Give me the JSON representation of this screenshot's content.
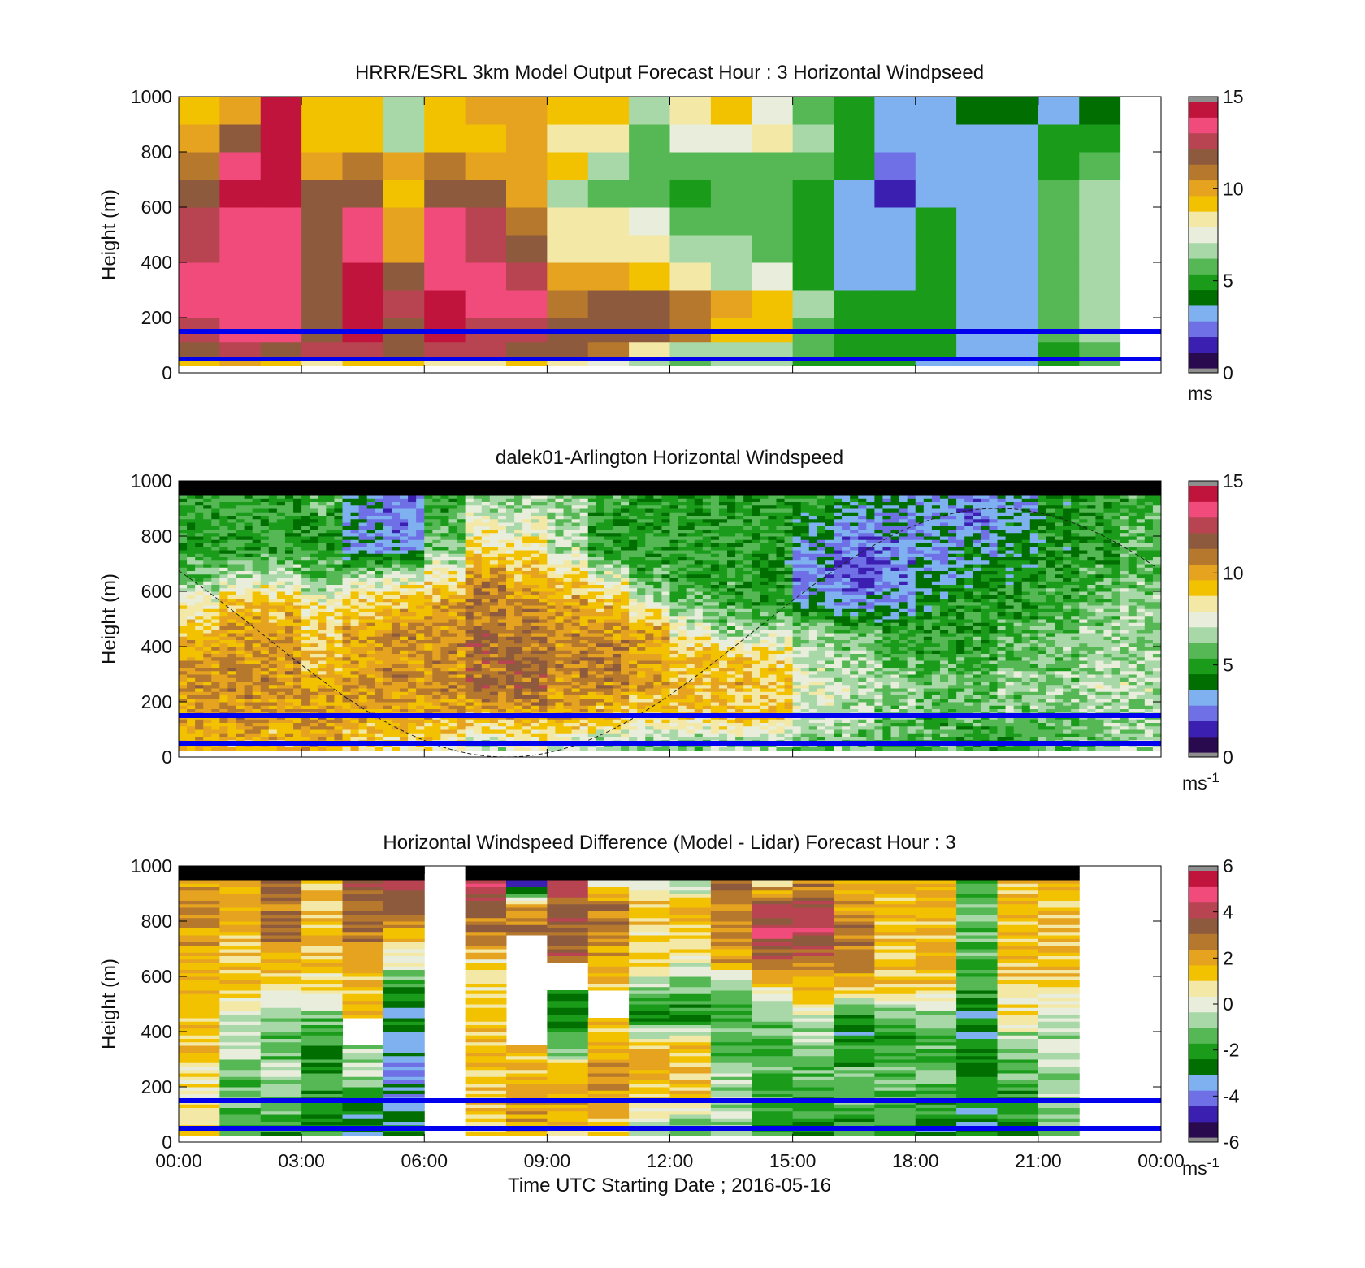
{
  "colors": {
    "marker_lines": "#0000ee",
    "colormap": [
      "#2a0a4e",
      "#3b1fb0",
      "#6f6fe6",
      "#7fb0f0",
      "#006e00",
      "#1a9b1a",
      "#55b855",
      "#a8d8a8",
      "#e9eedc",
      "#f3e8a6",
      "#f2c200",
      "#e6a31f",
      "#b5782c",
      "#8e5a3e",
      "#b84452",
      "#f04b7a",
      "#c0143c",
      "#8e8e8e"
    ]
  },
  "chart_data": [
    {
      "type": "heatmap",
      "title": "HRRR/ESRL 3km Model Output   Forecast Hour : 3 Horizontal Windpseed",
      "ylabel": "Height (m)",
      "xlabel": "",
      "ylim": [
        0,
        1000
      ],
      "yticks": [
        "0",
        "200",
        "400",
        "600",
        "800",
        "1000"
      ],
      "xticks": [
        "",
        "",
        "",
        "",
        "",
        "",
        "",
        "",
        ""
      ],
      "xlim_hours": [
        0,
        24
      ],
      "colorbar": {
        "min": 0,
        "max": 15,
        "ticks": [
          "0",
          "5",
          "10",
          "15"
        ],
        "unit": "ms"
      },
      "marker_heights": [
        150,
        50
      ],
      "profile_hours": [
        0,
        1,
        2,
        3,
        4,
        5,
        6,
        7,
        8,
        9,
        10,
        11,
        12,
        13,
        14,
        15,
        16,
        17,
        18,
        19,
        20,
        21,
        22
      ],
      "profile_levels": [
        25,
        75,
        150,
        250,
        350,
        450,
        550,
        650,
        750,
        850,
        950
      ],
      "values": [
        [
          9.5,
          10.5,
          9.5,
          8.5,
          9.5,
          9.0,
          8.0,
          8.5,
          9.0,
          8.5,
          7.5,
          6.5,
          6.0,
          6.5,
          6.5,
          5.0,
          5.0,
          5.0,
          3.5,
          3.5,
          3.0,
          5.0,
          5.5
        ],
        [
          11.5,
          12.5,
          11.5,
          12.5,
          13.0,
          12.0,
          13.0,
          12.5,
          12.0,
          11.5,
          11.0,
          8.5,
          6.5,
          6.5,
          7.0,
          5.5,
          5.0,
          5.0,
          4.5,
          3.5,
          3.5,
          5.0,
          5.5
        ],
        [
          13.0,
          14.0,
          13.5,
          11.5,
          14.5,
          12.0,
          14.5,
          13.0,
          12.5,
          11.5,
          11.5,
          11.5,
          11.0,
          9.5,
          9.0,
          6.0,
          5.0,
          5.0,
          5.0,
          3.5,
          3.5,
          5.5,
          6.5
        ],
        [
          13.5,
          14.0,
          14.0,
          11.5,
          14.5,
          13.0,
          14.5,
          14.0,
          13.5,
          11.0,
          11.5,
          11.5,
          11.0,
          10.0,
          9.0,
          6.5,
          5.0,
          5.0,
          5.0,
          3.5,
          3.5,
          5.5,
          6.5
        ],
        [
          13.5,
          14.0,
          13.5,
          11.5,
          14.5,
          12.0,
          14.0,
          13.5,
          12.5,
          10.0,
          10.0,
          9.5,
          8.0,
          6.5,
          7.5,
          5.0,
          3.5,
          3.5,
          5.0,
          3.5,
          3.5,
          5.5,
          6.5
        ],
        [
          13.0,
          14.0,
          13.5,
          11.5,
          14.0,
          10.5,
          14.0,
          13.0,
          11.5,
          8.0,
          8.0,
          8.5,
          6.5,
          6.5,
          6.0,
          5.0,
          3.5,
          3.0,
          5.0,
          3.5,
          3.5,
          5.5,
          6.5
        ],
        [
          12.5,
          14.0,
          14.0,
          11.5,
          14.0,
          10.0,
          14.0,
          12.5,
          11.0,
          8.0,
          8.0,
          7.5,
          6.0,
          5.5,
          5.5,
          5.0,
          3.5,
          3.0,
          5.0,
          3.5,
          3.5,
          5.5,
          6.5
        ],
        [
          12.0,
          14.5,
          14.5,
          11.5,
          11.5,
          9.5,
          12.0,
          11.5,
          10.0,
          7.0,
          6.0,
          6.0,
          5.0,
          5.5,
          5.5,
          4.5,
          3.5,
          1.5,
          3.5,
          3.5,
          3.5,
          5.5,
          6.5
        ],
        [
          11.0,
          13.5,
          14.5,
          10.5,
          11.0,
          10.5,
          11.0,
          10.5,
          10.0,
          9.0,
          7.0,
          6.0,
          5.5,
          5.5,
          6.0,
          5.5,
          4.5,
          2.0,
          3.5,
          3.5,
          3.5,
          5.0,
          5.5
        ],
        [
          10.5,
          11.5,
          14.5,
          9.5,
          9.5,
          6.5,
          9.5,
          9.5,
          10.0,
          8.5,
          8.0,
          6.0,
          7.5,
          7.5,
          8.0,
          6.5,
          5.0,
          3.5,
          3.0,
          3.5,
          3.5,
          4.5,
          5.0
        ],
        [
          9.0,
          10.0,
          14.5,
          9.0,
          9.0,
          7.0,
          9.0,
          10.0,
          10.5,
          9.5,
          9.0,
          7.0,
          8.5,
          9.0,
          7.5,
          6.0,
          4.5,
          3.0,
          3.5,
          4.0,
          4.0,
          3.5,
          4.0
        ]
      ]
    },
    {
      "type": "heatmap",
      "title": "dalek01-Arlington  Horizontal Windspeed",
      "ylabel": "Height (m)",
      "xlabel": "",
      "ylim": [
        0,
        1000
      ],
      "yticks": [
        "0",
        "200",
        "400",
        "600",
        "800",
        "1000"
      ],
      "xticks": [
        "",
        "",
        "",
        "",
        "",
        "",
        "",
        "",
        ""
      ],
      "xlim_hours": [
        0,
        24
      ],
      "colorbar": {
        "min": 0,
        "max": 15,
        "ticks": [
          "0",
          "5",
          "10",
          "15"
        ],
        "unit": "ms",
        "unit_exp": "-1"
      },
      "marker_heights": [
        150,
        50
      ],
      "profile_hours": [
        0,
        1,
        2,
        3,
        4,
        5,
        6,
        7,
        8,
        9,
        10,
        11,
        12,
        13,
        14,
        15,
        16,
        17,
        18,
        19,
        20,
        21,
        22,
        23
      ],
      "profile_levels": [
        50,
        150,
        250,
        350,
        450,
        550,
        650,
        750,
        850,
        950
      ],
      "values": [
        [
          9.5,
          9.5,
          9.5,
          10.0,
          9.0,
          8.5,
          8.5,
          7.0,
          8.0,
          7.0,
          6.5,
          6.0,
          6.0,
          6.5,
          6.5,
          6.0,
          6.0,
          5.5,
          5.5,
          5.0,
          5.0,
          5.5,
          6.0,
          6.5
        ],
        [
          10.0,
          10.5,
          10.0,
          10.5,
          10.0,
          10.0,
          10.0,
          9.5,
          10.0,
          10.0,
          9.5,
          9.0,
          9.0,
          9.5,
          9.5,
          7.0,
          6.5,
          6.0,
          5.5,
          5.5,
          6.0,
          6.0,
          6.5,
          6.5
        ],
        [
          10.5,
          10.5,
          10.5,
          10.0,
          10.5,
          10.5,
          10.5,
          11.5,
          11.5,
          10.5,
          10.5,
          10.0,
          9.5,
          9.5,
          9.0,
          7.5,
          7.0,
          6.5,
          6.0,
          6.0,
          6.5,
          6.5,
          7.0,
          7.0
        ],
        [
          10.0,
          10.5,
          10.5,
          9.5,
          10.0,
          10.5,
          10.5,
          11.5,
          11.5,
          11.0,
          11.0,
          10.0,
          9.5,
          9.5,
          9.0,
          7.0,
          6.5,
          6.0,
          5.5,
          5.5,
          6.0,
          6.0,
          6.5,
          6.5
        ],
        [
          9.5,
          10.0,
          10.0,
          9.0,
          10.0,
          10.5,
          10.5,
          11.5,
          11.0,
          10.5,
          10.5,
          10.0,
          8.0,
          6.5,
          7.0,
          6.5,
          6.0,
          5.5,
          5.0,
          5.0,
          5.5,
          6.0,
          6.5,
          6.5
        ],
        [
          8.0,
          9.5,
          9.5,
          8.0,
          9.0,
          9.5,
          10.0,
          11.0,
          10.5,
          10.0,
          9.5,
          7.5,
          6.0,
          5.5,
          5.0,
          4.0,
          3.0,
          3.0,
          4.5,
          5.0,
          5.0,
          5.5,
          6.0,
          6.5
        ],
        [
          6.0,
          7.0,
          7.0,
          6.0,
          7.0,
          7.5,
          8.5,
          10.5,
          9.5,
          9.0,
          7.5,
          5.5,
          5.0,
          5.0,
          4.5,
          2.5,
          2.0,
          2.5,
          3.5,
          4.0,
          4.5,
          5.0,
          5.5,
          6.0
        ],
        [
          5.0,
          5.0,
          5.0,
          5.0,
          3.0,
          3.0,
          6.0,
          8.5,
          8.5,
          7.0,
          5.0,
          5.0,
          5.0,
          5.0,
          4.5,
          3.0,
          2.0,
          2.5,
          3.0,
          3.5,
          4.0,
          4.5,
          5.0,
          5.5
        ],
        [
          5.0,
          5.0,
          5.0,
          5.0,
          3.0,
          2.5,
          5.5,
          7.5,
          7.5,
          6.5,
          5.0,
          5.0,
          5.0,
          5.0,
          5.0,
          4.0,
          3.0,
          3.0,
          3.0,
          2.5,
          3.5,
          4.5,
          5.0,
          5.5
        ],
        [
          5.0,
          5.0,
          5.0,
          5.5,
          3.5,
          2.5,
          5.0,
          6.5,
          6.5,
          6.5,
          5.5,
          5.0,
          5.0,
          5.0,
          5.0,
          5.0,
          4.0,
          3.5,
          3.0,
          2.5,
          3.0,
          4.5,
          5.0,
          5.5
        ]
      ]
    },
    {
      "type": "heatmap",
      "title": "Horizontal Windspeed Difference (Model - Lidar) Forecast Hour : 3",
      "ylabel": "Height (m)",
      "xlabel": "Time UTC  Starting Date ; 2016-05-16",
      "ylim": [
        0,
        1000
      ],
      "yticks": [
        "0",
        "200",
        "400",
        "600",
        "800",
        "1000"
      ],
      "xticks": [
        "00:00",
        "03:00",
        "06:00",
        "09:00",
        "12:00",
        "15:00",
        "18:00",
        "21:00",
        "00:00"
      ],
      "xlim_hours": [
        0,
        24
      ],
      "colorbar": {
        "min": -6,
        "max": 6,
        "ticks": [
          "-6",
          "-4",
          "-2",
          "0",
          "2",
          "4",
          "6"
        ],
        "unit": "ms",
        "unit_exp": "-1"
      },
      "marker_heights": [
        150,
        50
      ],
      "profile_hours": [
        0,
        1,
        2,
        3,
        4,
        5,
        6,
        7,
        8,
        9,
        10,
        11,
        12,
        13,
        14,
        15,
        16,
        17,
        18,
        19,
        20,
        21,
        22
      ],
      "profile_levels": [
        50,
        150,
        250,
        350,
        450,
        550,
        650,
        750,
        850,
        950
      ],
      "values": [
        [
          1.0,
          -2.0,
          -2.0,
          -2.5,
          -3.0,
          -2.5,
          null,
          1.0,
          2.0,
          1.5,
          1.0,
          -1.0,
          -2.0,
          -1.0,
          -2.0,
          -2.5,
          -2.0,
          -2.0,
          -2.5,
          -3.0,
          -2.5,
          -1.5,
          null
        ],
        [
          0.5,
          -1.5,
          -1.5,
          -2.0,
          -2.5,
          -3.5,
          null,
          1.5,
          2.5,
          2.0,
          2.0,
          1.5,
          1.5,
          -0.5,
          -1.5,
          -2.0,
          -1.5,
          -1.5,
          -2.0,
          -2.5,
          -2.0,
          -1.0,
          null
        ],
        [
          1.0,
          -1.0,
          -0.5,
          -2.0,
          -0.5,
          -4.0,
          null,
          1.5,
          1.5,
          2.0,
          2.5,
          2.0,
          1.5,
          -1.0,
          -1.5,
          -1.5,
          -1.5,
          -1.5,
          -1.5,
          -2.5,
          -1.5,
          -0.5,
          null
        ],
        [
          1.5,
          -0.5,
          -1.5,
          -2.0,
          null,
          -3.5,
          null,
          1.5,
          null,
          -1.5,
          1.5,
          1.5,
          1.5,
          -1.5,
          -1.5,
          -1.0,
          -2.5,
          -2.0,
          -1.5,
          -2.5,
          -1.0,
          -0.5,
          null
        ],
        [
          1.5,
          -0.5,
          -1.0,
          -1.0,
          null,
          -3.0,
          null,
          1.5,
          null,
          -2.5,
          null,
          -2.5,
          -2.5,
          -2.0,
          -1.0,
          0.0,
          -2.5,
          -1.5,
          -1.0,
          -2.5,
          0.5,
          -0.5,
          null
        ],
        [
          1.5,
          1.0,
          0.0,
          0.5,
          1.5,
          -2.5,
          null,
          1.0,
          null,
          null,
          null,
          -1.0,
          -1.5,
          -1.5,
          0.5,
          1.5,
          1.5,
          1.0,
          1.0,
          -2.0,
          1.0,
          1.0,
          null
        ],
        [
          2.0,
          1.5,
          2.0,
          1.5,
          2.0,
          0.0,
          null,
          1.0,
          null,
          null,
          1.5,
          1.0,
          0.0,
          2.0,
          3.0,
          3.0,
          2.5,
          1.5,
          1.5,
          -1.5,
          1.5,
          1.5,
          null
        ],
        [
          2.0,
          1.5,
          3.0,
          1.5,
          3.0,
          1.5,
          null,
          2.5,
          null,
          3.5,
          2.5,
          1.0,
          1.0,
          2.5,
          4.5,
          4.5,
          3.0,
          1.5,
          1.5,
          -1.0,
          1.5,
          1.5,
          null
        ],
        [
          2.5,
          2.0,
          3.0,
          1.5,
          3.0,
          3.5,
          null,
          3.0,
          3.0,
          3.0,
          3.0,
          1.5,
          1.5,
          2.5,
          4.0,
          4.0,
          2.0,
          1.5,
          1.5,
          -1.5,
          1.5,
          1.5,
          null
        ],
        [
          2.0,
          1.5,
          3.0,
          1.5,
          3.5,
          4.5,
          null,
          4.5,
          -6.0,
          4.5,
          -0.5,
          0.0,
          -1.0,
          2.5,
          1.0,
          2.5,
          1.5,
          1.5,
          1.5,
          -2.0,
          1.5,
          1.5,
          null
        ]
      ]
    }
  ]
}
